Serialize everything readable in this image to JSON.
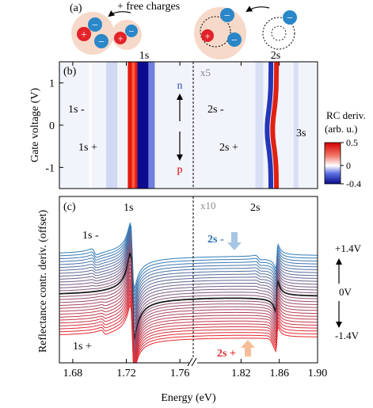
{
  "panel_a": {
    "label": "(a)",
    "caption": "+ free charges",
    "charge_minus": "−",
    "charge_plus": "+"
  },
  "chart_data": [
    {
      "type": "heatmap",
      "panel_label": "(b)",
      "ylabel": "Gate voltage (V)",
      "ylim": [
        -1.5,
        1.5
      ],
      "yticks": [
        1,
        0,
        -1
      ],
      "ytick_labels": [
        "1",
        "0",
        "-1"
      ],
      "x_segments": [
        [
          1.67,
          1.77
        ],
        [
          1.77,
          1.9
        ]
      ],
      "colorbar": {
        "label_line1": "RC deriv.",
        "label_line2": "(arb. u.)",
        "range": [
          -0.4,
          0.5
        ],
        "ticks": [
          0.5,
          0,
          -0.4
        ],
        "tick_labels": [
          "0.5",
          "0",
          "-0.4"
        ],
        "colors": [
          "#0a0a8a",
          "#ffffff",
          "#d40000"
        ]
      },
      "annotations": {
        "top_1s": "1s",
        "top_2s": "2s",
        "x5": "x5",
        "left_1s_minus": "1s -",
        "left_1s_plus": "1s +",
        "right_2s_minus": "2s -",
        "right_2s_plus": "2s +",
        "right_3s": "3s",
        "n": "n",
        "p": "p"
      }
    },
    {
      "type": "line",
      "panel_label": "(c)",
      "xlabel": "Energy (eV)",
      "ylabel": "Reflectance contr. deriv. (offset)",
      "xlim": [
        1.67,
        1.9
      ],
      "axis_break": 1.77,
      "xticks": [
        1.68,
        1.72,
        1.76,
        1.82,
        1.86,
        1.9
      ],
      "xtick_labels": [
        "1.68",
        "1.72",
        "1.76",
        "1.82",
        "1.86",
        "1.90"
      ],
      "gate_voltage_range": [
        -1.4,
        1.4
      ],
      "num_traces": 29,
      "trace_color_top": "#2e7dba",
      "trace_color_bottom": "#e8262d",
      "trace_color_zero": "#1a1a1a",
      "right_labels": {
        "top": "+1.4V",
        "middle": "0V",
        "bottom": "-1.4V"
      },
      "annotations": {
        "peak_1s": "1s",
        "peak_2s": "2s",
        "x10": "x10",
        "s1_minus": "1s -",
        "s1_plus": "1s +",
        "s2_minus": "2s -",
        "s2_plus": "2s +"
      },
      "arrow_colors": {
        "s2_minus": "#a7c6e3",
        "s2_plus": "#f6be98"
      }
    }
  ]
}
